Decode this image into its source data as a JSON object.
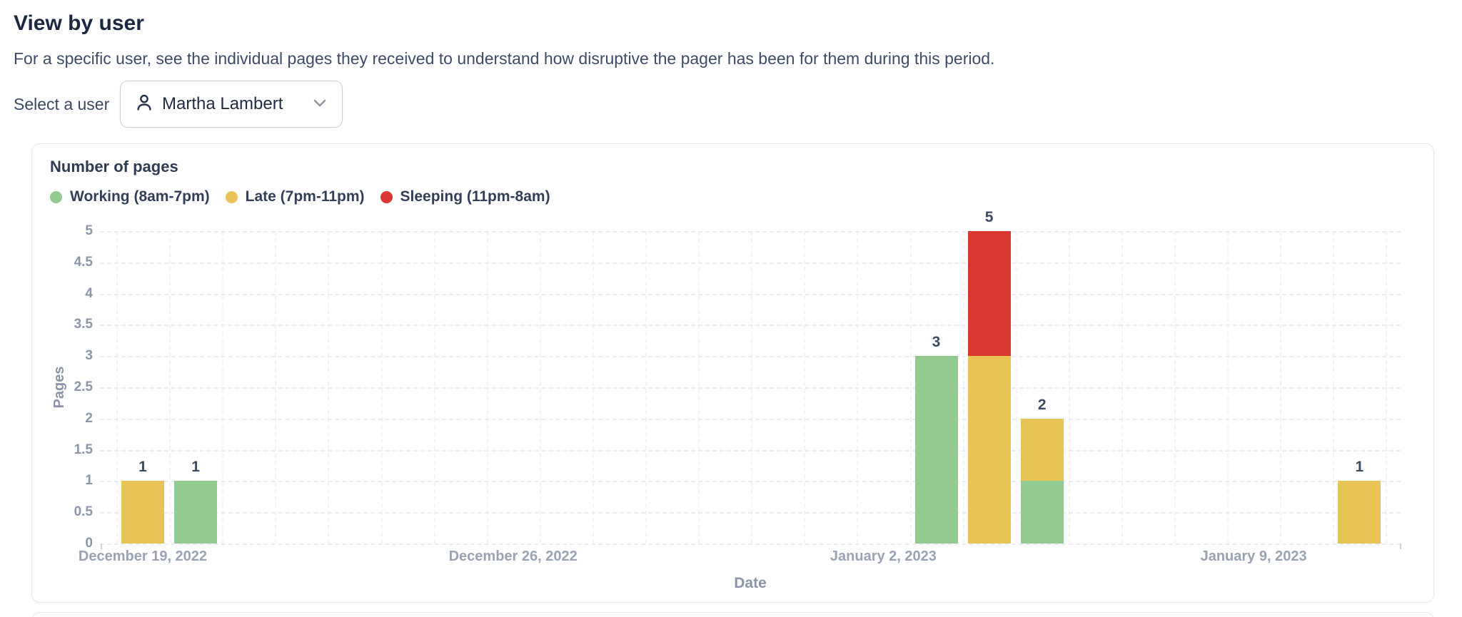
{
  "header": {
    "title": "View by user",
    "description": "For a specific user, see the individual pages they received to understand how disruptive the pager has been for them during this period."
  },
  "user_select": {
    "label": "Select a user",
    "selected_user": "Martha Lambert",
    "icons": [
      "person-icon",
      "chevron-down-icon"
    ]
  },
  "chart_data": {
    "type": "bar",
    "stacked": true,
    "title": "Number of pages",
    "xlabel": "Date",
    "ylabel": "Pages",
    "ylim": [
      0,
      5
    ],
    "ytick_step": 0.5,
    "ytick_labels": [
      "0",
      "0.5",
      "1",
      "1.5",
      "2",
      "2.5",
      "3",
      "3.5",
      "4",
      "4.5",
      "5"
    ],
    "grid": "dashed",
    "legend_position": "top",
    "series": [
      {
        "name": "Working (8am-7pm)",
        "color": "#92ca90"
      },
      {
        "name": "Late (7pm-11pm)",
        "color": "#e8c355"
      },
      {
        "name": "Sleeping (11pm-8am)",
        "color": "#d93731"
      }
    ],
    "xticks": [
      {
        "day": 0,
        "label": "December 19, 2022"
      },
      {
        "day": 7,
        "label": "December 26, 2022"
      },
      {
        "day": 14,
        "label": "January 2, 2023"
      },
      {
        "day": 21,
        "label": "January 9, 2023"
      }
    ],
    "bars": [
      {
        "day": 0,
        "values": [
          0,
          1,
          0
        ],
        "label": "1"
      },
      {
        "day": 1,
        "values": [
          1,
          0,
          0
        ],
        "label": "1"
      },
      {
        "day": 15,
        "values": [
          3,
          0,
          0
        ],
        "label": "3"
      },
      {
        "day": 16,
        "values": [
          0,
          3,
          2
        ],
        "label": "5"
      },
      {
        "day": 17,
        "values": [
          1,
          1,
          0
        ],
        "label": "2"
      },
      {
        "day": 23,
        "values": [
          0,
          1,
          0
        ],
        "label": "1"
      }
    ]
  },
  "colors": {
    "text_dark": "#1b2840",
    "text_slate": "#3e4b66",
    "tick_gray": "#8c96a8",
    "green": "#92ca90",
    "yellow": "#e8c355",
    "red": "#d93731"
  }
}
